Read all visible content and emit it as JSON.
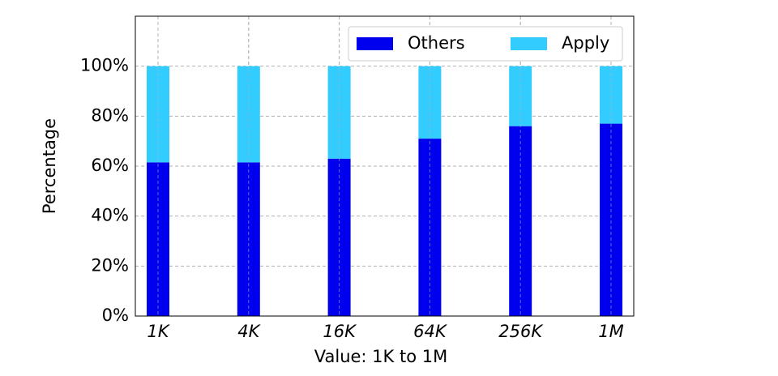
{
  "chart_data": {
    "type": "stacked-bar",
    "x_label": "Value: 1K to 1M",
    "y_label": "Percentage",
    "categories": [
      "1K",
      "4K",
      "16K",
      "64K",
      "256K",
      "1M"
    ],
    "series": [
      {
        "name": "Others",
        "color": "#0000ee",
        "values": [
          61.5,
          61.5,
          63,
          71,
          76,
          77
        ]
      },
      {
        "name": "Apply",
        "color": "#33ccff",
        "values": [
          38.5,
          38.5,
          37,
          29,
          24,
          23
        ]
      }
    ],
    "ylim": [
      0,
      120
    ],
    "yticks": [
      {
        "value": 0,
        "label": "0%"
      },
      {
        "value": 20,
        "label": "20%"
      },
      {
        "value": 40,
        "label": "40%"
      },
      {
        "value": 60,
        "label": "60%"
      },
      {
        "value": 80,
        "label": "80%"
      },
      {
        "value": 100,
        "label": "100%"
      }
    ],
    "grid": true,
    "legend": "upper right"
  }
}
